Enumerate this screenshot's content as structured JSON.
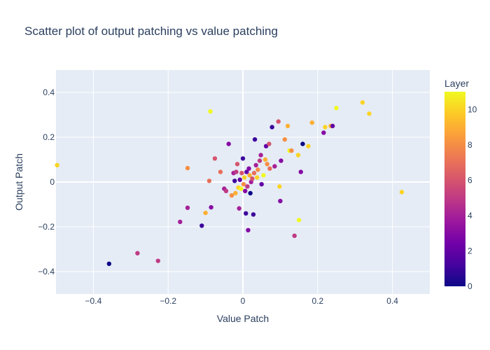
{
  "chart_data": {
    "type": "scatter",
    "title": "Scatter plot of output patching vs value patching",
    "xlabel": "Value Patch",
    "ylabel": "Output Patch",
    "xlim": [
      -0.5,
      0.5
    ],
    "ylim": [
      -0.5,
      0.5
    ],
    "x_ticks": [
      -0.4,
      -0.2,
      0,
      0.2,
      0.4
    ],
    "x_tick_labels": [
      "−0.4",
      "−0.2",
      "0",
      "0.2",
      "0.4"
    ],
    "y_ticks": [
      -0.4,
      -0.2,
      0,
      0.2,
      0.4
    ],
    "y_tick_labels": [
      "−0.4",
      "−0.2",
      "0",
      "0.2",
      "0.4"
    ],
    "grid": true,
    "plot_background": "#e5ecf6",
    "colorbar": {
      "title": "Layer",
      "range": [
        0,
        11
      ],
      "ticks": [
        0,
        2,
        4,
        6,
        8,
        10
      ],
      "tick_labels": [
        "0",
        "2",
        "4",
        "6",
        "8",
        "10"
      ],
      "colorscale": [
        "#0d0887",
        "#46039f",
        "#7201a8",
        "#9c179e",
        "#bd3786",
        "#d8576b",
        "#ed7953",
        "#fb9f3a",
        "#fdca26",
        "#f0f921"
      ]
    },
    "points": [
      {
        "x": -0.358,
        "y": -0.365,
        "layer": 0
      },
      {
        "x": -0.282,
        "y": -0.318,
        "layer": 5
      },
      {
        "x": -0.227,
        "y": -0.352,
        "layer": 5
      },
      {
        "x": -0.168,
        "y": -0.178,
        "layer": 4
      },
      {
        "x": -0.148,
        "y": -0.115,
        "layer": 4
      },
      {
        "x": -0.11,
        "y": -0.195,
        "layer": 1
      },
      {
        "x": -0.1,
        "y": -0.138,
        "layer": 9
      },
      {
        "x": -0.085,
        "y": -0.113,
        "layer": 3
      },
      {
        "x": -0.497,
        "y": 0.075,
        "layer": 10
      },
      {
        "x": -0.087,
        "y": 0.315,
        "layer": 11
      },
      {
        "x": -0.148,
        "y": 0.062,
        "layer": 8
      },
      {
        "x": -0.09,
        "y": 0.005,
        "layer": 7
      },
      {
        "x": -0.075,
        "y": 0.105,
        "layer": 6
      },
      {
        "x": -0.06,
        "y": 0.045,
        "layer": 7
      },
      {
        "x": -0.05,
        "y": -0.03,
        "layer": 4
      },
      {
        "x": -0.045,
        "y": -0.04,
        "layer": 5
      },
      {
        "x": -0.038,
        "y": 0.17,
        "layer": 3
      },
      {
        "x": -0.03,
        "y": -0.06,
        "layer": 8
      },
      {
        "x": -0.025,
        "y": 0.04,
        "layer": 4
      },
      {
        "x": -0.022,
        "y": 0.005,
        "layer": 1
      },
      {
        "x": -0.02,
        "y": -0.05,
        "layer": 9
      },
      {
        "x": -0.018,
        "y": 0.045,
        "layer": 5
      },
      {
        "x": -0.015,
        "y": 0.08,
        "layer": 6
      },
      {
        "x": -0.012,
        "y": -0.025,
        "layer": 10
      },
      {
        "x": -0.01,
        "y": -0.118,
        "layer": 4
      },
      {
        "x": -0.008,
        "y": 0.01,
        "layer": 2
      },
      {
        "x": -0.005,
        "y": -0.03,
        "layer": 11
      },
      {
        "x": -0.003,
        "y": 0.04,
        "layer": 6
      },
      {
        "x": 0.0,
        "y": 0.105,
        "layer": 1
      },
      {
        "x": 0.002,
        "y": -0.01,
        "layer": 8
      },
      {
        "x": 0.004,
        "y": 0.02,
        "layer": 10
      },
      {
        "x": 0.006,
        "y": -0.04,
        "layer": 3
      },
      {
        "x": 0.008,
        "y": -0.14,
        "layer": 1
      },
      {
        "x": 0.01,
        "y": 0.045,
        "layer": 2
      },
      {
        "x": 0.012,
        "y": -0.02,
        "layer": 5
      },
      {
        "x": 0.014,
        "y": -0.215,
        "layer": 3
      },
      {
        "x": 0.016,
        "y": 0.06,
        "layer": 3
      },
      {
        "x": 0.018,
        "y": 0.03,
        "layer": 9
      },
      {
        "x": 0.02,
        "y": -0.05,
        "layer": 0
      },
      {
        "x": 0.022,
        "y": 0.0,
        "layer": 4
      },
      {
        "x": 0.025,
        "y": 0.015,
        "layer": 6
      },
      {
        "x": 0.028,
        "y": -0.145,
        "layer": 1
      },
      {
        "x": 0.03,
        "y": 0.04,
        "layer": 7
      },
      {
        "x": 0.032,
        "y": 0.19,
        "layer": 1
      },
      {
        "x": 0.035,
        "y": 0.075,
        "layer": 4
      },
      {
        "x": 0.038,
        "y": 0.02,
        "layer": 10
      },
      {
        "x": 0.04,
        "y": 0.055,
        "layer": 8
      },
      {
        "x": 0.045,
        "y": 0.095,
        "layer": 5
      },
      {
        "x": 0.048,
        "y": 0.12,
        "layer": 4
      },
      {
        "x": 0.05,
        "y": -0.01,
        "layer": 2
      },
      {
        "x": 0.055,
        "y": 0.03,
        "layer": 11
      },
      {
        "x": 0.06,
        "y": 0.1,
        "layer": 9
      },
      {
        "x": 0.062,
        "y": 0.16,
        "layer": 2
      },
      {
        "x": 0.065,
        "y": 0.08,
        "layer": 8
      },
      {
        "x": 0.07,
        "y": 0.17,
        "layer": 6
      },
      {
        "x": 0.072,
        "y": 0.06,
        "layer": 7
      },
      {
        "x": 0.078,
        "y": 0.245,
        "layer": 1
      },
      {
        "x": 0.085,
        "y": 0.07,
        "layer": 4
      },
      {
        "x": 0.095,
        "y": 0.27,
        "layer": 6
      },
      {
        "x": 0.1,
        "y": -0.085,
        "layer": 3
      },
      {
        "x": 0.098,
        "y": -0.02,
        "layer": 10
      },
      {
        "x": 0.102,
        "y": 0.095,
        "layer": 3
      },
      {
        "x": 0.112,
        "y": 0.19,
        "layer": 8
      },
      {
        "x": 0.12,
        "y": 0.25,
        "layer": 9
      },
      {
        "x": 0.125,
        "y": 0.14,
        "layer": 11
      },
      {
        "x": 0.13,
        "y": 0.14,
        "layer": 8
      },
      {
        "x": 0.138,
        "y": -0.24,
        "layer": 5
      },
      {
        "x": 0.15,
        "y": -0.17,
        "layer": 11
      },
      {
        "x": 0.148,
        "y": 0.12,
        "layer": 10
      },
      {
        "x": 0.155,
        "y": 0.045,
        "layer": 3
      },
      {
        "x": 0.16,
        "y": 0.17,
        "layer": 0
      },
      {
        "x": 0.175,
        "y": 0.16,
        "layer": 10
      },
      {
        "x": 0.185,
        "y": 0.265,
        "layer": 9
      },
      {
        "x": 0.216,
        "y": 0.22,
        "layer": 3
      },
      {
        "x": 0.22,
        "y": 0.245,
        "layer": 10
      },
      {
        "x": 0.235,
        "y": 0.25,
        "layer": 9
      },
      {
        "x": 0.24,
        "y": 0.25,
        "layer": 2
      },
      {
        "x": 0.25,
        "y": 0.33,
        "layer": 11
      },
      {
        "x": 0.32,
        "y": 0.355,
        "layer": 10
      },
      {
        "x": 0.338,
        "y": 0.305,
        "layer": 10
      },
      {
        "x": 0.425,
        "y": -0.045,
        "layer": 10
      }
    ]
  }
}
